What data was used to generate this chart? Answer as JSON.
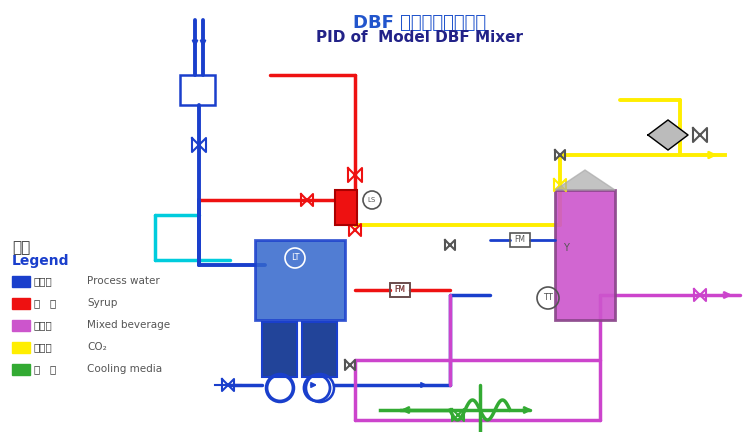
{
  "title_cn": "DBF 混合机工作流程图",
  "title_en": "PID of  Model DBF Mixer",
  "legend_title_cn": "图例",
  "legend_title_en": "Legend",
  "legend_items": [
    {
      "color": "#1a3fcc",
      "cn": "无菌水",
      "en": "Process water"
    },
    {
      "color": "#ee1111",
      "cn": "糖   浆",
      "en": "Syrup"
    },
    {
      "color": "#cc55cc",
      "cn": "混合液",
      "en": "Mixed beverage"
    },
    {
      "color": "#ffee00",
      "cn": "碳酸气",
      "en": "CO₂"
    },
    {
      "color": "#33aa33",
      "cn": "冷   媒",
      "en": "Cooling media"
    }
  ],
  "bg_color": "#ffffff",
  "blue": "#1a3fcc",
  "red": "#ee1111",
  "magenta": "#cc44cc",
  "yellow": "#ffee00",
  "green": "#33aa33",
  "cyan": "#00ccdd",
  "dark_blue": "#1a3fcc",
  "lw": 2.5
}
